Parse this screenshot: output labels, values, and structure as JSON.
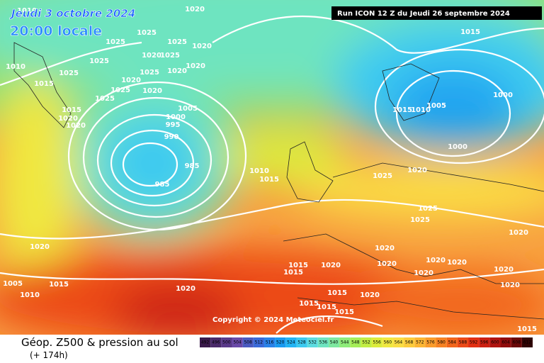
{
  "header": {
    "date": "Jeudi 3 octobre 2024",
    "time": "20:00 locale",
    "run": "Run ICON 12 Z du Jeudi 26 septembre 2024"
  },
  "copyright": "Copyright © 2024 Meteociel.fr",
  "isobar_labels": [
    1010,
    1020,
    1025,
    1025,
    1025,
    1020,
    1025,
    1020,
    1025,
    1010,
    1025,
    1020,
    1025,
    1020,
    1020,
    1015,
    1025,
    1020,
    1025,
    1015,
    1020,
    1020,
    1005,
    1000,
    995,
    990,
    985,
    985,
    1010,
    1015,
    1015,
    1000,
    1015,
    1010,
    1005,
    1000,
    1025,
    1020,
    1025,
    1025,
    1020,
    1020,
    1020,
    1020,
    1015,
    1015,
    1020,
    1020,
    1020,
    1020,
    1005,
    1015,
    1010,
    1020,
    1015,
    1020,
    1015,
    1015,
    1015,
    1020,
    1020,
    1015
  ],
  "footer": {
    "title": "Géop. Z500 & pression au sol",
    "lead": "(+ 174h)"
  },
  "legend": {
    "values": [
      492,
      496,
      500,
      504,
      508,
      512,
      516,
      520,
      524,
      528,
      532,
      536,
      540,
      544,
      548,
      552,
      556,
      560,
      564,
      568,
      572,
      576,
      580,
      584,
      588,
      592,
      596,
      600,
      604,
      608,
      612
    ],
    "colors": [
      "#3a1a4a",
      "#4a2a6a",
      "#5a3a8a",
      "#6a4aa8",
      "#4a5ac0",
      "#3a6ad8",
      "#2a82e8",
      "#1a9af0",
      "#22b4f4",
      "#3ccaf0",
      "#5cdce0",
      "#6ee4c0",
      "#7ee8a0",
      "#8eec7a",
      "#a6ee58",
      "#c2ee44",
      "#dcec3c",
      "#f0e840",
      "#fade44",
      "#fccc3c",
      "#fcb634",
      "#fa9c2c",
      "#f68224",
      "#f2661c",
      "#ec4a18",
      "#e23014",
      "#cc2012",
      "#b01410",
      "#900c0c",
      "#6a0808",
      "#300404"
    ]
  }
}
